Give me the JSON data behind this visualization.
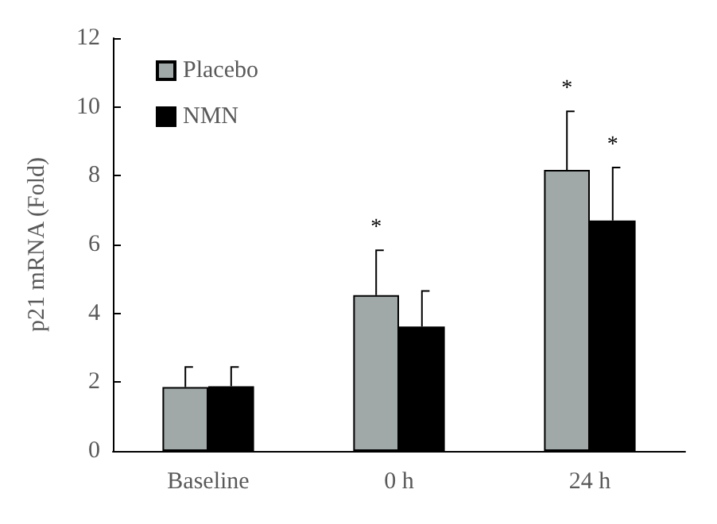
{
  "chart_data": {
    "type": "bar",
    "ylabel": "p21 mRNA (Fold)",
    "categories": [
      "Baseline",
      "0 h",
      "24 h"
    ],
    "series": [
      {
        "name": "Placebo",
        "color": "#a0a8a8",
        "values": [
          1.86,
          4.53,
          8.17
        ],
        "errors": [
          [
            1.86,
            2.44
          ],
          [
            4.53,
            5.83
          ],
          [
            8.17,
            9.87
          ]
        ]
      },
      {
        "name": "NMN",
        "color": "#000000",
        "values": [
          1.88,
          3.62,
          6.7
        ],
        "errors": [
          [
            1.88,
            2.44
          ],
          [
            3.62,
            4.65
          ],
          [
            6.7,
            8.24
          ]
        ]
      }
    ],
    "ylim": [
      0,
      12
    ],
    "yticks": [
      0,
      2,
      4,
      6,
      8,
      10,
      12
    ],
    "grid": false,
    "legend": "top left",
    "annotations": [
      "*",
      "*",
      "*"
    ]
  }
}
